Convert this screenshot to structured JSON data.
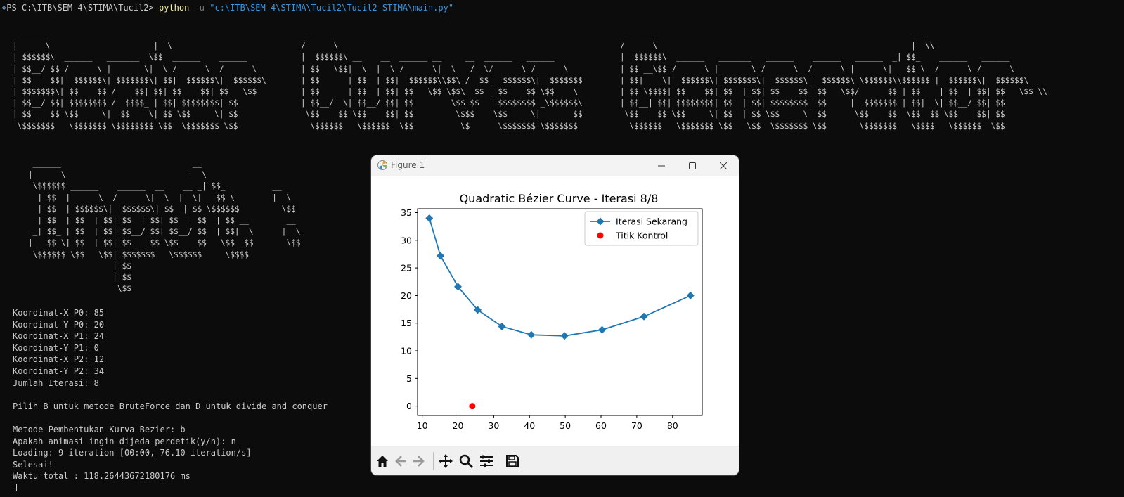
{
  "terminal": {
    "prompt": "PS C:\\ITB\\SEM 4\\STIMA\\Tucil2> ",
    "command": "python",
    "flag": "-u",
    "path_arg": "\"c:\\ITB\\SEM 4\\STIMA\\Tucil2\\Tucil2-STIMA\\main.py\"",
    "banner_left": " ______                        __ \n|      \\                      |  \\\n| $$$$$$\\  ______   _______  \\$$  ______    ______  \n| $$__/ $$ /      \\ |       \\|  \\ /      \\  /      \\ \n| $$    $$|  $$$$$$\\| $$$$$$$\\| $$|  $$$$$$\\|  $$$$$$\\\n| $$$$$$$\\| $$    $$ /    $$| $$| $$    $$| $$   \\$$\n| $$__/ $$| $$$$$$$$ /  $$$$_ | $$| $$$$$$$$| $$      \n| $$    $$ \\$$     \\|  $$    \\| $$ \\$$     \\| $$      \n \\$$$$$$$   \\$$$$$$$ \\$$$$$$$$ \\$$  \\$$$$$$$ \\$$      ",
    "banner_mid": " ______                                                \n/      \\                                               \n|  $$$$$$\\ __    __  ______ __     __  ______   ______  \n| $$   \\$$|  \\  |  \\ /      \\|  \\   /  \\/      \\ /      \\ \n| $$      | $$  | $$|  $$$$$$\\\\$$\\ /  $$|  $$$$$$\\|  $$$$$$$\n| $$   __ | $$  | $$| $$   \\$$ \\$$\\  $$ | $$    $$ \\$$    \\ \n| $$__/  \\| $$__/ $$| $$        \\$$ $$  | $$$$$$$$ _\\$$$$$$\\\n \\$$    $$ \\$$    $$| $$         \\$$$    \\$$     \\|       $$\n  \\$$$$$$   \\$$$$$$  \\$$          \\$      \\$$$$$$$ \\$$$$$$$ ",
    "banner_right": " ______                                                        __ \n/      \\                                                      |  \\\\\n|  $$$$$$\\  ______   _______   ______    ______   ______  _| $$_    ______   ______  \n| $$ __\\$$ /      \\ |       \\ /      \\  /      \\ |      \\|   $$ \\  /      \\ /      \\ \n| $$|    \\|  $$$$$$\\| $$$$$$$\\|  $$$$$$\\|  $$$$$$\\ \\$$$$$$\\\\$$$$$$ |  $$$$$$\\|  $$$$$$\\\n| $$ \\$$$$| $$    $$| $$  | $$| $$    $$| $$   \\$$/      $$ | $$ __ | $$  | $$| $$   \\$$ \\\\\n| $$__| $$| $$$$$$$$| $$  | $$| $$$$$$$$| $$     |  $$$$$$$ | $$|  \\| $$__/ $$| $$      \n \\$$    $$ \\$$     \\| $$  | $$ \\$$     \\| $$      \\$$    $$  \\$$  $$ \\$$    $$| $$      \n  \\$$$$$$   \\$$$$$$$ \\$$   \\$$  \\$$$$$$$ \\$$       \\$$$$$$$   \\$$$$   \\$$$$$$  \\$$      ",
    "banner_bottom": " ______                            __ \n|      \\                          |  \\\n \\$$$$$$ ______    ______  __    __ _| $$_          __ \n  | $$  |      \\  /      \\|  \\  |  \\|   $$ \\        |  \\\n  | $$  | $$$$$$\\|  $$$$$$\\| $$  | $$ \\$$$$$$         \\$$\n  | $$  | $$  | $$| $$  | $$| $$  | $$  | $$ __        __ \n _| $$_ | $$  | $$| $$__/ $$| $$__/ $$  | $$|  \\      |  \\\n|   $$ \\| $$  | $$| $$    $$ \\$$    $$   \\$$  $$       \\$$\n \\$$$$$$ \\$$   \\$$| $$$$$$$   \\$$$$$$     \\$$$$          \n                  | $$                                      \n                  | $$                                      \n                   \\$$                                      ",
    "lines": [
      "Koordinat-X P0: 85",
      "Koordinat-Y P0: 20",
      "Koordinat-X P1: 24",
      "Koordinat-Y P1: 0",
      "Koordinat-X P2: 12",
      "Koordinat-Y P2: 34",
      "Jumlah Iterasi: 8",
      "",
      "Pilih B untuk metode BruteForce dan D untuk divide and conquer",
      "",
      "Metode Pembentukan Kurva Bezier: b",
      "Apakah animasi ingin dijeda perdetik(y/n): n",
      "Loading: 9 iteration [00:00, 76.10 iteration/s]",
      "Selesai!",
      "Waktu total : 118.26443672180176 ms"
    ]
  },
  "window": {
    "title": "Figure 1",
    "controls": [
      "minimize-icon",
      "maximize-icon",
      "close-icon"
    ]
  },
  "toolbar": {
    "buttons": [
      "home-icon",
      "back-icon",
      "forward-icon",
      "pan-icon",
      "zoom-icon",
      "configure-subplots-icon",
      "save-icon"
    ]
  },
  "chart_data": {
    "type": "line",
    "title": "Quadratic Bézier Curve - Iterasi 8/8",
    "xlabel": "",
    "ylabel": "",
    "xlim": [
      8.7,
      88.3
    ],
    "ylim": [
      -1.7,
      35.7
    ],
    "xticks": [
      10,
      20,
      30,
      40,
      50,
      60,
      70,
      80
    ],
    "yticks": [
      0,
      5,
      10,
      15,
      20,
      25,
      30,
      35
    ],
    "grid": false,
    "legend_position": "upper right",
    "series": [
      {
        "name": "Iterasi Sekarang",
        "type": "line",
        "marker": "diamond",
        "color": "#1f77b4",
        "x": [
          12,
          15.1,
          20.0,
          25.5,
          32.3,
          40.5,
          49.8,
          60.3,
          72.0,
          85
        ],
        "y": [
          34,
          27.2,
          21.6,
          17.4,
          14.4,
          12.9,
          12.7,
          13.8,
          16.2,
          20
        ]
      },
      {
        "name": "Titik Kontrol",
        "type": "scatter",
        "marker": "circle",
        "color": "#ff0000",
        "x": [
          24
        ],
        "y": [
          0
        ]
      }
    ]
  }
}
